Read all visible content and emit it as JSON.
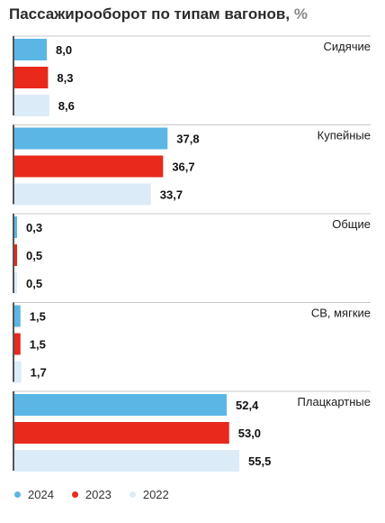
{
  "title": "Пассажирооборот по типам вагонов,",
  "title_unit": "%",
  "colors": {
    "2024": "#5bb6e6",
    "2023": "#e8291c",
    "2022": "#dcebf8",
    "axis": "#555555",
    "divider": "#c8c8c8"
  },
  "chart_data": {
    "type": "bar",
    "orientation": "horizontal",
    "title": "Пассажирооборот по типам вагонов, %",
    "categories": [
      "Сидячие",
      "Купейные",
      "Общие",
      "СВ, мягкие",
      "Плацкартные"
    ],
    "series": [
      {
        "name": "2024",
        "values": [
          8.0,
          37.8,
          0.3,
          1.5,
          52.4
        ],
        "labels": [
          "8,0",
          "37,8",
          "0,3",
          "1,5",
          "52,4"
        ]
      },
      {
        "name": "2023",
        "values": [
          8.3,
          36.7,
          0.5,
          1.5,
          53.0
        ],
        "labels": [
          "8,3",
          "36,7",
          "0,5",
          "1,5",
          "53,0"
        ]
      },
      {
        "name": "2022",
        "values": [
          8.6,
          33.7,
          0.5,
          1.7,
          55.5
        ],
        "labels": [
          "8,6",
          "33,7",
          "0,5",
          "1,7",
          "55,5"
        ]
      }
    ],
    "legend_position": "bottom-left",
    "grid": false
  },
  "legend": [
    {
      "label": "2024",
      "color": "#5bb6e6"
    },
    {
      "label": "2023",
      "color": "#e8291c"
    },
    {
      "label": "2022",
      "color": "#dcebf8"
    }
  ]
}
